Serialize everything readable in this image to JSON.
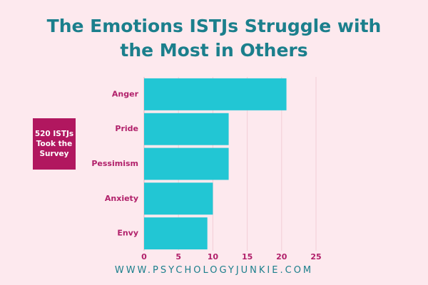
{
  "chart_data": {
    "type": "bar",
    "horizontal": true,
    "title": "The Emotions ISTJs Struggle with the Most in Others",
    "annotation": "520 ISTJs Took the Survey",
    "footer": "WWW.PSYCHOLOGYJUNKIE.COM",
    "categories": [
      "Anger",
      "Pride",
      "Pessimism",
      "Anxiety",
      "Envy"
    ],
    "values": [
      20.7,
      12.3,
      12.3,
      10,
      9.2
    ],
    "color": "#22c6d4",
    "xlim": [
      0,
      25
    ],
    "xticks": [
      0,
      5,
      10,
      15,
      20,
      25
    ],
    "grid": true
  }
}
